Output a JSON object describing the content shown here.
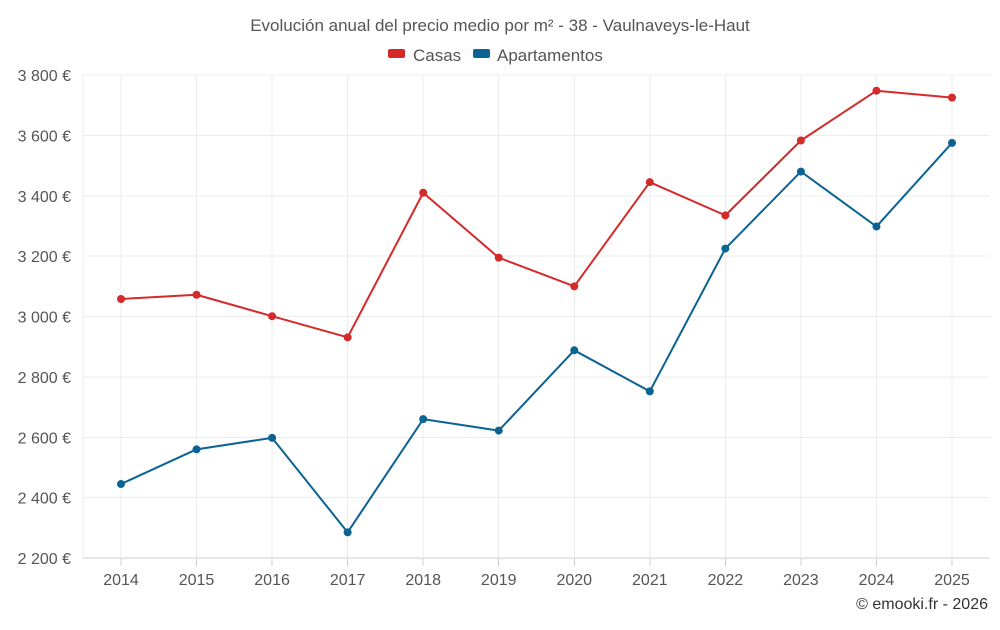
{
  "chart_data": {
    "type": "line",
    "title": "Evolución anual del precio medio por m² - 38 - Vaulnaveys-le-Haut",
    "categories": [
      "2014",
      "2015",
      "2016",
      "2017",
      "2018",
      "2019",
      "2020",
      "2021",
      "2022",
      "2023",
      "2024",
      "2025"
    ],
    "series": [
      {
        "name": "Casas",
        "color": "#d42a2a",
        "values": [
          3058,
          3072,
          3001,
          2931,
          3410,
          3195,
          3100,
          3445,
          3335,
          3583,
          3748,
          3725
        ]
      },
      {
        "name": "Apartamentos",
        "color": "#0b6394",
        "values": [
          2445,
          2560,
          2598,
          2285,
          2660,
          2622,
          2888,
          2752,
          3225,
          3480,
          3298,
          3575
        ]
      }
    ],
    "ylim": [
      2200,
      3800
    ],
    "yticks": [
      {
        "value": 3800,
        "label": "3 800 €"
      },
      {
        "value": 3600,
        "label": "3 600 €"
      },
      {
        "value": 3400,
        "label": "3 400 €"
      },
      {
        "value": 3200,
        "label": "3 200 €"
      },
      {
        "value": 3000,
        "label": "3 000 €"
      },
      {
        "value": 2800,
        "label": "2 800 €"
      },
      {
        "value": 2600,
        "label": "2 600 €"
      },
      {
        "value": 2400,
        "label": "2 400 €"
      },
      {
        "value": 2200,
        "label": "2 200 €"
      }
    ],
    "xlabel": "",
    "ylabel": "",
    "grid": true,
    "legend": "top-center"
  },
  "credit": "© emooki.fr - 2026"
}
